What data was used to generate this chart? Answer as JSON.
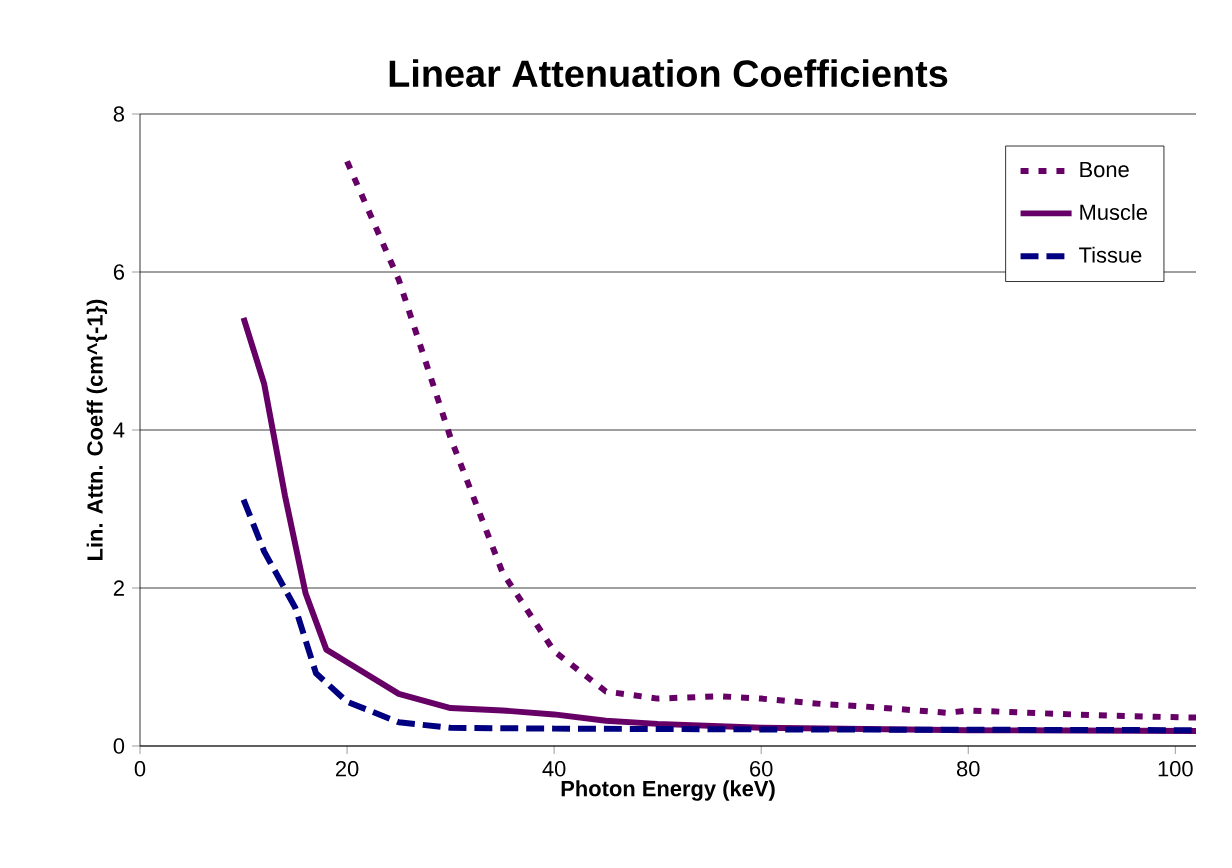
{
  "chart_data": {
    "type": "line",
    "title": "Linear Attenuation Coefficients",
    "xlabel": "Photon Energy (keV)",
    "ylabel": "Lin. Attn. Coeff (cm^{-1})",
    "xlim": [
      0,
      102
    ],
    "ylim": [
      0,
      8
    ],
    "xticks": [
      0,
      20,
      40,
      60,
      80,
      100
    ],
    "yticks": [
      0,
      2,
      4,
      6,
      8
    ],
    "grid": "y",
    "legend": "top right",
    "marker": "none",
    "series": [
      {
        "name": "Bone",
        "color": "#660066",
        "line_style": "dotted",
        "x": [
          20,
          25,
          30,
          35,
          40,
          45,
          50,
          56,
          60,
          66,
          70,
          78,
          80,
          90,
          98,
          102
        ],
        "values": [
          7.4,
          5.9,
          3.9,
          2.2,
          1.2,
          0.69,
          0.6,
          0.63,
          0.6,
          0.53,
          0.5,
          0.42,
          0.45,
          0.4,
          0.37,
          0.36
        ]
      },
      {
        "name": "Muscle",
        "color": "#660066",
        "line_style": "solid",
        "x": [
          10,
          12,
          14,
          16,
          18,
          20,
          25,
          30,
          35,
          40,
          45,
          50,
          60,
          80,
          102
        ],
        "values": [
          5.42,
          4.58,
          3.17,
          1.93,
          1.22,
          1.06,
          0.66,
          0.48,
          0.45,
          0.4,
          0.32,
          0.28,
          0.23,
          0.2,
          0.19
        ]
      },
      {
        "name": "Tissue",
        "color": "#000080",
        "line_style": "dashed",
        "x": [
          10,
          12,
          15,
          17,
          20,
          25,
          30,
          40,
          60,
          102
        ],
        "values": [
          3.12,
          2.46,
          1.75,
          0.92,
          0.56,
          0.3,
          0.23,
          0.22,
          0.21,
          0.2
        ]
      }
    ]
  }
}
